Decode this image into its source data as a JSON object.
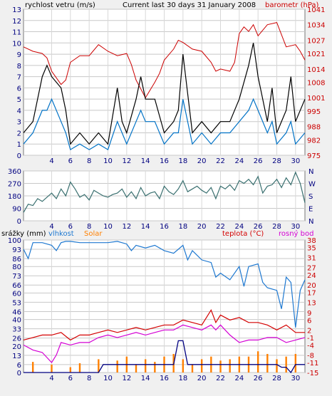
{
  "colors": {
    "wind": "#000000",
    "gust": "#000000",
    "wind2": "#0072c6",
    "pressure": "#cc0000",
    "direction": "#3a7070",
    "rain": "#000080",
    "humidity": "#1e78d0",
    "solar": "#ff8000",
    "temp": "#d40000",
    "dew": "#d400d4",
    "axis_blue": "#000080"
  },
  "chart_data": [
    {
      "type": "line",
      "title": "Current last 30 days 31 January 2008",
      "left_label": "rychlost vetru (m/s)",
      "right_label": "barometr (hPa)",
      "y_ticks": [
        0,
        1,
        2,
        3,
        4,
        5,
        6,
        7,
        8,
        9,
        10,
        11,
        12,
        13
      ],
      "ylim": [
        0,
        13
      ],
      "y2_ticks": [
        975,
        982,
        988,
        995,
        1001,
        1008,
        1014,
        1021,
        1027,
        1034,
        1041
      ],
      "y2lim": [
        975,
        1041
      ],
      "x_ticks": [
        4,
        6,
        8,
        10,
        12,
        14,
        16,
        18,
        20,
        22,
        24,
        26,
        28,
        30
      ],
      "xlim": [
        1,
        31
      ],
      "series": [
        {
          "key": "pressure",
          "x": [
            1,
            2,
            3,
            3.5,
            4,
            5,
            5.5,
            6,
            7,
            8,
            9,
            10,
            11,
            12,
            12.5,
            13,
            13.5,
            14,
            15,
            15.5,
            16,
            17,
            17.5,
            18,
            19,
            20,
            21,
            21.5,
            22,
            23,
            23.5,
            24,
            24.5,
            25,
            25.5,
            26,
            27,
            28,
            29,
            30,
            30.5,
            31
          ],
          "values": [
            1024,
            1022,
            1021,
            1019,
            1013,
            1007,
            1009,
            1017,
            1020,
            1020,
            1025,
            1022,
            1020,
            1021,
            1016,
            1009,
            1005,
            1001,
            1008,
            1012,
            1018,
            1023,
            1027,
            1026,
            1023,
            1022,
            1017,
            1013,
            1014,
            1013,
            1017,
            1030,
            1033,
            1031,
            1034,
            1029,
            1034,
            1035,
            1024,
            1025,
            1022,
            1018
          ]
        },
        {
          "key": "wind_max",
          "x": [
            1,
            2,
            3,
            3.5,
            4,
            5,
            5.5,
            6,
            7,
            8,
            9,
            10,
            11,
            11.5,
            12,
            13,
            13.5,
            14,
            15,
            16,
            17,
            17.5,
            18,
            19,
            20,
            21,
            22,
            23,
            24,
            25,
            25.5,
            26,
            27,
            27.5,
            28,
            29,
            29.5,
            30,
            31
          ],
          "values": [
            2,
            3,
            7,
            8,
            7,
            6,
            4,
            1,
            2,
            1,
            2,
            1,
            6,
            3,
            2,
            5,
            7,
            5,
            5,
            2,
            3,
            4,
            9,
            2,
            3,
            2,
            3,
            3,
            5,
            8,
            10,
            7,
            3,
            6,
            2,
            4,
            7,
            3,
            5
          ]
        },
        {
          "key": "wind_avg",
          "x": [
            1,
            2,
            3,
            3.5,
            4,
            5,
            5.5,
            6,
            7,
            8,
            9,
            10,
            11,
            11.5,
            12,
            13,
            13.5,
            14,
            15,
            16,
            17,
            17.5,
            18,
            19,
            20,
            21,
            22,
            23,
            24,
            25,
            25.5,
            26,
            27,
            27.5,
            28,
            29,
            29.5,
            30,
            31
          ],
          "values": [
            1,
            2,
            4,
            4,
            5,
            3,
            2,
            0.5,
            1,
            0.5,
            1,
            0.5,
            3,
            2,
            1,
            3,
            4,
            3,
            3,
            1,
            2,
            2,
            5,
            1,
            2,
            1,
            2,
            2,
            3,
            4,
            5,
            4,
            2,
            3,
            1,
            2,
            3,
            1,
            2
          ]
        }
      ]
    },
    {
      "type": "line",
      "right_labels": [
        "N",
        "W",
        "S",
        "E",
        "N"
      ],
      "y_ticks": [
        0,
        90,
        180,
        270,
        360
      ],
      "ylim": [
        0,
        360
      ],
      "x_ticks": [
        4,
        6,
        8,
        10,
        12,
        14,
        16,
        18,
        20,
        22,
        24,
        26,
        28,
        30
      ],
      "xlim": [
        1,
        31
      ],
      "series": [
        {
          "key": "direction",
          "x": [
            1,
            1.5,
            2,
            2.5,
            3,
            3.5,
            4,
            4.5,
            5,
            5.5,
            6,
            6.5,
            7,
            7.5,
            8,
            8.5,
            9,
            9.5,
            10,
            10.5,
            11,
            11.5,
            12,
            12.5,
            13,
            13.5,
            14,
            14.5,
            15,
            15.5,
            16,
            16.5,
            17,
            17.5,
            18,
            18.5,
            19,
            19.5,
            20,
            20.5,
            21,
            21.5,
            22,
            22.5,
            23,
            23.5,
            24,
            24.5,
            25,
            25.5,
            26,
            26.5,
            27,
            27.5,
            28,
            28.5,
            29,
            29.5,
            30,
            30.5,
            31
          ],
          "values": [
            60,
            120,
            110,
            160,
            140,
            170,
            200,
            160,
            230,
            180,
            280,
            230,
            170,
            190,
            150,
            220,
            200,
            180,
            170,
            190,
            200,
            230,
            170,
            210,
            160,
            240,
            180,
            200,
            210,
            160,
            250,
            210,
            190,
            230,
            290,
            210,
            230,
            250,
            220,
            200,
            240,
            160,
            250,
            230,
            260,
            220,
            290,
            270,
            300,
            260,
            320,
            200,
            250,
            260,
            300,
            240,
            310,
            260,
            350,
            270,
            130
          ]
        }
      ]
    },
    {
      "type": "line",
      "labels": [
        "srážky (mm)",
        "vlhkost",
        "Solar",
        "teplota (°C)",
        "rosný bod"
      ],
      "y_ticks": [
        0,
        6,
        13,
        20,
        26,
        33,
        40,
        46,
        53,
        60,
        66,
        73,
        80,
        86,
        93,
        100
      ],
      "ylim": [
        0,
        100
      ],
      "y2_ticks": [
        -15,
        -11,
        -8,
        -4,
        -1,
        2,
        6,
        9,
        13,
        17,
        20,
        24,
        27,
        31,
        35,
        38
      ],
      "y2lim": [
        -15,
        38
      ],
      "x_ticks": [
        4,
        6,
        8,
        10,
        12,
        14,
        16,
        18,
        20,
        22,
        24,
        26,
        28,
        30
      ],
      "xlim": [
        1,
        31
      ],
      "series": [
        {
          "key": "humidity",
          "x": [
            1,
            1.5,
            2,
            3,
            4,
            4.5,
            5,
            5.5,
            6,
            7,
            8,
            9,
            10,
            11,
            12,
            12.5,
            13,
            14,
            15,
            16,
            17,
            18,
            18.5,
            19,
            20,
            21,
            21.5,
            22,
            23,
            24,
            24.5,
            25,
            26,
            26.5,
            27,
            28,
            28.5,
            29,
            29.5,
            30,
            30.5,
            31
          ],
          "values": [
            93,
            86,
            98,
            98,
            96,
            92,
            98,
            99,
            99,
            98,
            98,
            98,
            98,
            99,
            97,
            92,
            96,
            94,
            96,
            92,
            90,
            96,
            85,
            92,
            85,
            83,
            72,
            75,
            70,
            80,
            65,
            80,
            82,
            68,
            64,
            62,
            48,
            72,
            68,
            34,
            62,
            70
          ]
        },
        {
          "key": "temp",
          "x": [
            1,
            2,
            3,
            4,
            5,
            6,
            7,
            8,
            9,
            10,
            11,
            12,
            13,
            14,
            15,
            16,
            17,
            18,
            19,
            20,
            21,
            21.5,
            22,
            23,
            24,
            25,
            26,
            27,
            28,
            29,
            30,
            31
          ],
          "values": [
            -2,
            -1,
            0,
            0,
            1,
            -2,
            0,
            0,
            1,
            2,
            1,
            2,
            3,
            2,
            3,
            4,
            4,
            6,
            5,
            4,
            10,
            5,
            8,
            6,
            7,
            5,
            5,
            4,
            2,
            4,
            1,
            1
          ]
        },
        {
          "key": "dew",
          "x": [
            1,
            2,
            3,
            4,
            4.5,
            5,
            6,
            7,
            8,
            9,
            10,
            11,
            12,
            13,
            14,
            15,
            16,
            17,
            18,
            19,
            20,
            21,
            21.5,
            22,
            23,
            24,
            25,
            26,
            27,
            28,
            29,
            30,
            31
          ],
          "values": [
            -4,
            -6,
            -7,
            -11,
            -8,
            -3,
            -4,
            -3,
            -3,
            -1,
            0,
            -1,
            0,
            1,
            0,
            1,
            2,
            2,
            4,
            3,
            2,
            4,
            2,
            4,
            0,
            -3,
            -2,
            -2,
            -1,
            -1,
            -3,
            -2,
            -1
          ]
        },
        {
          "key": "rain",
          "x": [
            1,
            8,
            9,
            9.5,
            10,
            17,
            17.5,
            18,
            18.5,
            19,
            26,
            27,
            28,
            28.5,
            29,
            29.5,
            30,
            31
          ],
          "values": [
            0,
            0,
            0,
            6,
            6,
            6,
            24,
            24,
            6,
            6,
            6,
            6,
            6,
            4,
            4,
            0,
            6,
            6
          ]
        },
        {
          "key": "solar",
          "x": [
            2,
            4,
            6,
            7,
            9,
            11,
            12,
            13,
            14,
            15,
            16,
            17,
            18,
            19,
            20,
            21,
            22,
            23,
            24,
            25,
            26,
            27,
            28,
            29,
            30
          ],
          "values": [
            8,
            6,
            4,
            7,
            10,
            9,
            12,
            6,
            10,
            8,
            12,
            14,
            10,
            6,
            10,
            12,
            9,
            10,
            12,
            12,
            16,
            14,
            10,
            12,
            14
          ]
        }
      ]
    }
  ]
}
